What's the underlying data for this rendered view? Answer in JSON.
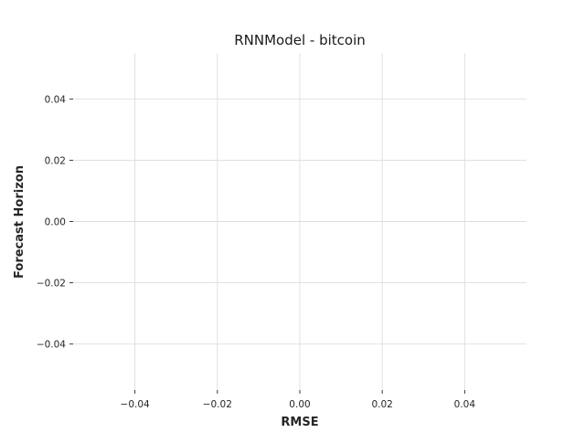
{
  "chart_data": {
    "type": "line",
    "title": "RNNModel - bitcoin",
    "xlabel": "RMSE",
    "ylabel": "Forecast Horizon",
    "xlim": [
      -0.055,
      0.055
    ],
    "ylim": [
      -0.055,
      0.055
    ],
    "x_ticks": [
      -0.04,
      -0.02,
      0.0,
      0.02,
      0.04
    ],
    "x_tick_labels": [
      "−0.04",
      "−0.02",
      "0.00",
      "0.02",
      "0.04"
    ],
    "y_ticks": [
      -0.04,
      -0.02,
      0.0,
      0.02,
      0.04
    ],
    "y_tick_labels": [
      "−0.04",
      "−0.02",
      "0.00",
      "0.02",
      "0.04"
    ],
    "series": [],
    "grid": true,
    "legend": "none"
  }
}
